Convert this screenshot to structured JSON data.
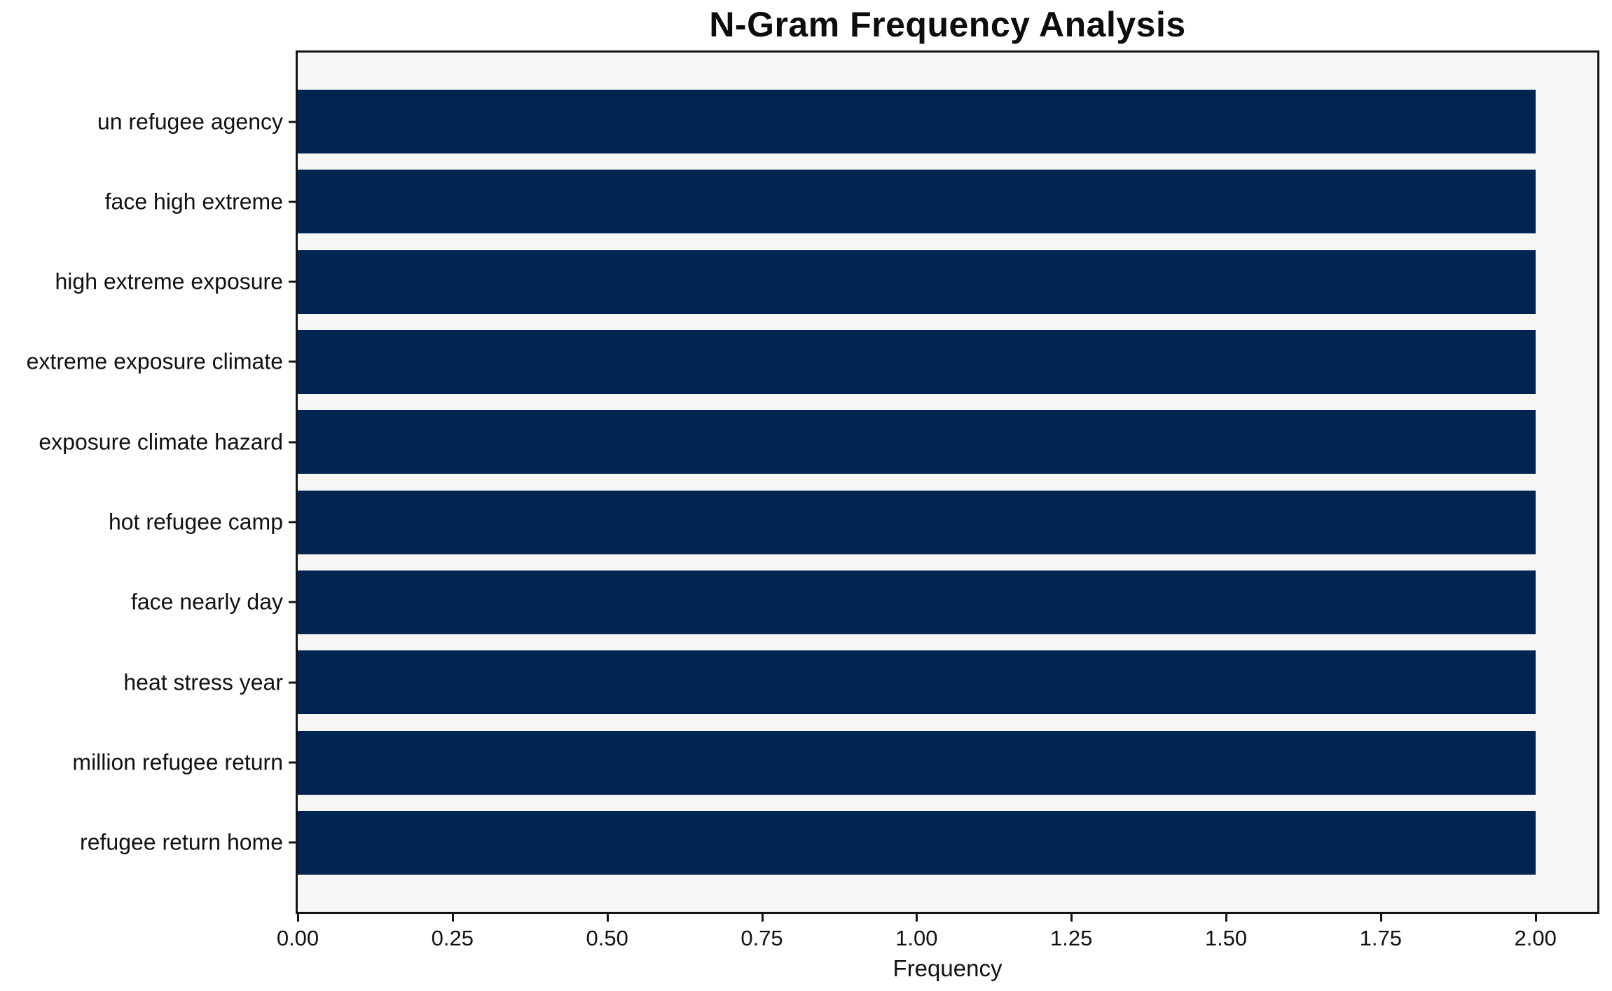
{
  "chart_data": {
    "type": "bar",
    "orientation": "horizontal",
    "title": "N-Gram Frequency Analysis",
    "xlabel": "Frequency",
    "ylabel": "",
    "categories": [
      "un refugee agency",
      "face high extreme",
      "high extreme exposure",
      "extreme exposure climate",
      "exposure climate hazard",
      "hot refugee camp",
      "face nearly day",
      "heat stress year",
      "million refugee return",
      "refugee return home"
    ],
    "values": [
      2,
      2,
      2,
      2,
      2,
      2,
      2,
      2,
      2,
      2
    ],
    "xlim": [
      0,
      2.1
    ],
    "xticks": [
      0.0,
      0.25,
      0.5,
      0.75,
      1.0,
      1.25,
      1.5,
      1.75,
      2.0
    ],
    "xtick_labels": [
      "0.00",
      "0.25",
      "0.50",
      "0.75",
      "1.00",
      "1.25",
      "1.50",
      "1.75",
      "2.00"
    ],
    "bar_color": "#002551",
    "plot_background": "#f6f6f5",
    "figure_background": "#ffffff",
    "axis_color": "#141414",
    "grid": false,
    "legend": false
  }
}
